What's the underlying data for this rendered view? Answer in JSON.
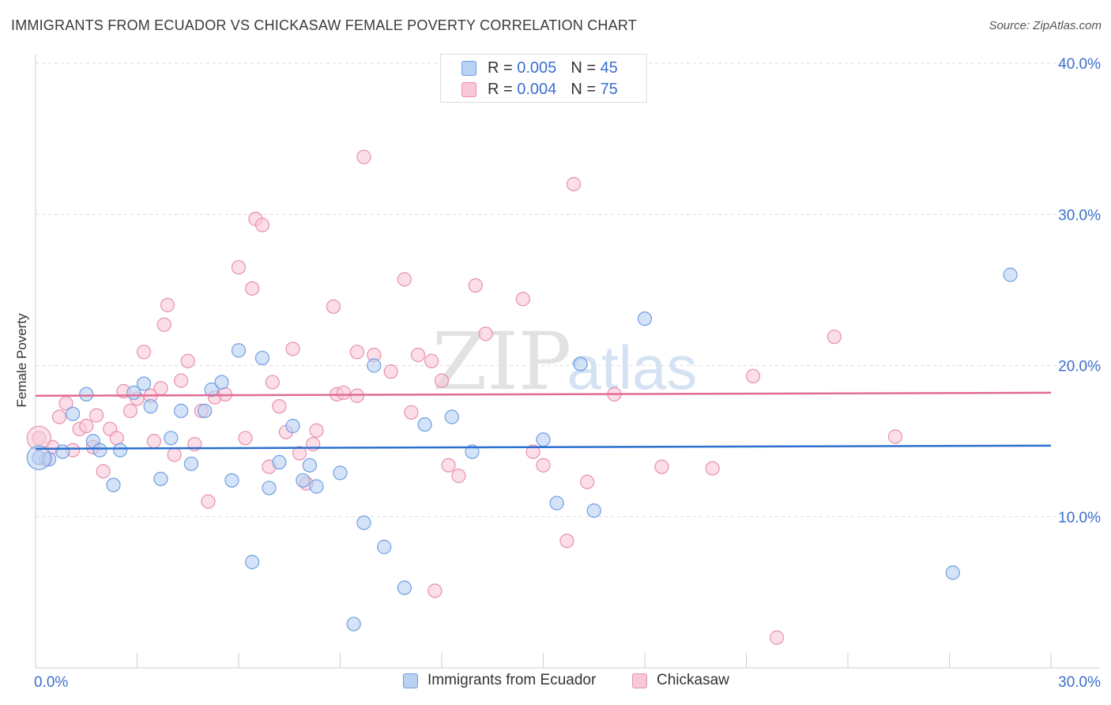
{
  "title": "IMMIGRANTS FROM ECUADOR VS CHICKASAW FEMALE POVERTY CORRELATION CHART",
  "source": "Source: ZipAtlas.com",
  "watermark": {
    "zip": "ZIP",
    "atlas": "atlas"
  },
  "legend_top": [
    {
      "r_label": "R =",
      "r_value": "0.005",
      "n_label": "N =",
      "n_value": "45"
    },
    {
      "r_label": "R =",
      "r_value": "0.004",
      "n_label": "N =",
      "n_value": "75"
    }
  ],
  "colors": {
    "blue_fill": "#b9d1f3",
    "blue_stroke": "#6f9fe0",
    "blue_line": "#2b6fcf",
    "pink_fill": "#f8c8d8",
    "pink_stroke": "#e890ad",
    "pink_line": "#e06c93",
    "tick_text": "#3b6fd0",
    "grid": "#d9d9d9"
  },
  "chart_data": {
    "type": "scatter",
    "title": "IMMIGRANTS FROM ECUADOR VS CHICKASAW FEMALE POVERTY CORRELATION CHART",
    "xlabel": "",
    "ylabel": "Female Poverty",
    "xlim": [
      0,
      30
    ],
    "ylim": [
      0,
      40
    ],
    "x_tick_labels": [
      "0.0%",
      "30.0%"
    ],
    "y_ticks": [
      10,
      20,
      30,
      40
    ],
    "y_tick_labels": [
      "10.0%",
      "20.0%",
      "30.0%",
      "40.0%"
    ],
    "grid": true,
    "legend_placement": "bottom",
    "series": [
      {
        "name": "Immigrants from Ecuador",
        "color": "blue",
        "trend": [
          [
            0,
            14.5
          ],
          [
            30,
            14.7
          ]
        ],
        "points": [
          [
            0.1,
            13.9
          ],
          [
            0.4,
            13.8
          ],
          [
            0.8,
            14.3
          ],
          [
            1.1,
            16.8
          ],
          [
            1.5,
            18.1
          ],
          [
            1.7,
            15.0
          ],
          [
            1.9,
            14.4
          ],
          [
            2.3,
            12.1
          ],
          [
            2.5,
            14.4
          ],
          [
            2.9,
            18.2
          ],
          [
            3.2,
            18.8
          ],
          [
            3.4,
            17.3
          ],
          [
            3.7,
            12.5
          ],
          [
            4.0,
            15.2
          ],
          [
            4.3,
            17.0
          ],
          [
            4.6,
            13.5
          ],
          [
            5.0,
            17.0
          ],
          [
            5.2,
            18.4
          ],
          [
            5.5,
            18.9
          ],
          [
            5.8,
            12.4
          ],
          [
            6.0,
            21.0
          ],
          [
            6.4,
            7.0
          ],
          [
            6.7,
            20.5
          ],
          [
            6.9,
            11.9
          ],
          [
            7.2,
            13.6
          ],
          [
            7.6,
            16.0
          ],
          [
            7.9,
            12.4
          ],
          [
            8.1,
            13.4
          ],
          [
            8.3,
            12.0
          ],
          [
            9.0,
            12.9
          ],
          [
            9.4,
            2.9
          ],
          [
            9.7,
            9.6
          ],
          [
            10.0,
            20.0
          ],
          [
            10.3,
            8.0
          ],
          [
            10.9,
            5.3
          ],
          [
            11.5,
            16.1
          ],
          [
            12.3,
            16.6
          ],
          [
            12.9,
            14.3
          ],
          [
            15.0,
            15.1
          ],
          [
            15.4,
            10.9
          ],
          [
            16.1,
            20.1
          ],
          [
            16.5,
            10.4
          ],
          [
            18.0,
            23.1
          ],
          [
            27.1,
            6.3
          ],
          [
            28.8,
            26.0
          ]
        ]
      },
      {
        "name": "Chickasaw",
        "color": "pink",
        "trend": [
          [
            0,
            18.0
          ],
          [
            30,
            18.2
          ]
        ],
        "points": [
          [
            0.1,
            15.2
          ],
          [
            0.3,
            13.8
          ],
          [
            0.5,
            14.6
          ],
          [
            0.7,
            16.6
          ],
          [
            0.9,
            17.5
          ],
          [
            1.1,
            14.4
          ],
          [
            1.3,
            15.8
          ],
          [
            1.5,
            16.0
          ],
          [
            1.7,
            14.6
          ],
          [
            1.8,
            16.7
          ],
          [
            2.0,
            13.0
          ],
          [
            2.2,
            15.8
          ],
          [
            2.4,
            15.2
          ],
          [
            2.6,
            18.3
          ],
          [
            2.8,
            17.0
          ],
          [
            3.0,
            17.8
          ],
          [
            3.2,
            20.9
          ],
          [
            3.4,
            18.0
          ],
          [
            3.5,
            15.0
          ],
          [
            3.7,
            18.5
          ],
          [
            3.8,
            22.7
          ],
          [
            3.9,
            24.0
          ],
          [
            4.1,
            14.1
          ],
          [
            4.3,
            19.0
          ],
          [
            4.5,
            20.3
          ],
          [
            4.7,
            14.8
          ],
          [
            4.9,
            17.0
          ],
          [
            5.1,
            11.0
          ],
          [
            5.3,
            17.9
          ],
          [
            5.6,
            18.1
          ],
          [
            6.0,
            26.5
          ],
          [
            6.2,
            15.2
          ],
          [
            6.4,
            25.1
          ],
          [
            6.5,
            29.7
          ],
          [
            6.7,
            29.3
          ],
          [
            6.9,
            13.3
          ],
          [
            7.0,
            18.9
          ],
          [
            7.2,
            17.3
          ],
          [
            7.4,
            15.6
          ],
          [
            7.6,
            21.1
          ],
          [
            7.8,
            14.2
          ],
          [
            8.0,
            12.2
          ],
          [
            8.2,
            14.8
          ],
          [
            8.3,
            15.7
          ],
          [
            8.8,
            23.9
          ],
          [
            8.9,
            18.1
          ],
          [
            9.1,
            18.2
          ],
          [
            9.5,
            20.9
          ],
          [
            9.7,
            33.8
          ],
          [
            10.0,
            20.7
          ],
          [
            10.5,
            19.6
          ],
          [
            10.9,
            25.7
          ],
          [
            11.1,
            16.9
          ],
          [
            11.3,
            20.7
          ],
          [
            11.7,
            20.3
          ],
          [
            12.0,
            19.0
          ],
          [
            12.2,
            13.4
          ],
          [
            12.5,
            12.7
          ],
          [
            13.0,
            25.3
          ],
          [
            13.3,
            22.1
          ],
          [
            14.4,
            24.4
          ],
          [
            14.7,
            14.3
          ],
          [
            15.0,
            13.4
          ],
          [
            15.7,
            8.4
          ],
          [
            15.9,
            32.0
          ],
          [
            16.3,
            12.3
          ],
          [
            17.1,
            18.1
          ],
          [
            18.5,
            13.3
          ],
          [
            20.0,
            13.2
          ],
          [
            21.2,
            19.3
          ],
          [
            21.9,
            2.0
          ],
          [
            23.6,
            21.9
          ],
          [
            25.4,
            15.3
          ],
          [
            11.8,
            5.1
          ],
          [
            9.5,
            18.0
          ]
        ]
      }
    ]
  }
}
